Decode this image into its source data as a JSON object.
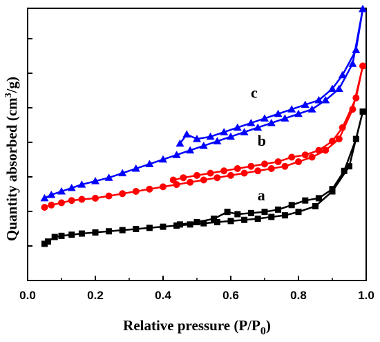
{
  "chart_data": {
    "type": "line",
    "xlabel": "Relative pressure (P/P",
    "xlabel_sub": "0",
    "xlabel_end": ")",
    "ylabel": "Quantity absorbed (cm",
    "ylabel_sup": "3",
    "ylabel_end": "/g)",
    "xlim": [
      0.0,
      1.0
    ],
    "x_ticks": [
      "0.0",
      "0.2",
      "0.4",
      "0.6",
      "0.8",
      "1.0"
    ],
    "y_ticks_labeled": false,
    "ylim": [
      0,
      100
    ],
    "grid": false,
    "legend": "none",
    "series": [
      {
        "name": "a",
        "color": "#000000",
        "marker": "square",
        "adsorption": [
          [
            0.05,
            7
          ],
          [
            0.06,
            8
          ],
          [
            0.08,
            10
          ],
          [
            0.1,
            10.5
          ],
          [
            0.13,
            11
          ],
          [
            0.16,
            11.5
          ],
          [
            0.2,
            12
          ],
          [
            0.24,
            12.5
          ],
          [
            0.28,
            13
          ],
          [
            0.32,
            13.5
          ],
          [
            0.36,
            14
          ],
          [
            0.4,
            14.5
          ],
          [
            0.44,
            15
          ],
          [
            0.48,
            15.5
          ],
          [
            0.52,
            16
          ],
          [
            0.56,
            16.5
          ],
          [
            0.6,
            17
          ],
          [
            0.64,
            17.5
          ],
          [
            0.68,
            18
          ],
          [
            0.72,
            18.8
          ],
          [
            0.76,
            19.5
          ],
          [
            0.8,
            21
          ],
          [
            0.85,
            23.5
          ],
          [
            0.9,
            30
          ],
          [
            0.95,
            41
          ],
          [
            0.99,
            65
          ]
        ],
        "desorption": [
          [
            0.99,
            65
          ],
          [
            0.97,
            53
          ],
          [
            0.935,
            39
          ],
          [
            0.9,
            31
          ],
          [
            0.86,
            27
          ],
          [
            0.82,
            26
          ],
          [
            0.78,
            24
          ],
          [
            0.74,
            22
          ],
          [
            0.7,
            21
          ],
          [
            0.66,
            20.5
          ],
          [
            0.62,
            20
          ],
          [
            0.59,
            21
          ],
          [
            0.55,
            18
          ],
          [
            0.5,
            16.5
          ],
          [
            0.45,
            15.5
          ]
        ]
      },
      {
        "name": "b",
        "color": "#ff0000",
        "marker": "circle",
        "adsorption": [
          [
            0.05,
            23
          ],
          [
            0.07,
            24
          ],
          [
            0.1,
            25
          ],
          [
            0.13,
            26
          ],
          [
            0.16,
            26.5
          ],
          [
            0.2,
            27
          ],
          [
            0.24,
            28
          ],
          [
            0.28,
            29
          ],
          [
            0.32,
            30
          ],
          [
            0.36,
            31
          ],
          [
            0.4,
            32
          ],
          [
            0.44,
            33
          ],
          [
            0.48,
            34
          ],
          [
            0.52,
            35
          ],
          [
            0.56,
            36
          ],
          [
            0.6,
            37
          ],
          [
            0.64,
            38
          ],
          [
            0.68,
            39
          ],
          [
            0.72,
            40
          ],
          [
            0.76,
            41
          ],
          [
            0.8,
            43
          ],
          [
            0.84,
            45
          ],
          [
            0.88,
            48
          ],
          [
            0.92,
            53
          ],
          [
            0.96,
            66
          ],
          [
            0.99,
            85
          ]
        ],
        "desorption": [
          [
            0.99,
            85
          ],
          [
            0.97,
            71
          ],
          [
            0.93,
            58
          ],
          [
            0.9,
            52
          ],
          [
            0.86,
            48
          ],
          [
            0.82,
            46
          ],
          [
            0.78,
            45
          ],
          [
            0.74,
            43
          ],
          [
            0.7,
            42
          ],
          [
            0.66,
            41
          ],
          [
            0.62,
            40
          ],
          [
            0.58,
            39
          ],
          [
            0.54,
            38
          ],
          [
            0.5,
            37
          ],
          [
            0.46,
            36
          ],
          [
            0.43,
            35
          ]
        ]
      },
      {
        "name": "c",
        "color": "#0000ff",
        "marker": "triangle",
        "adsorption": [
          [
            0.05,
            27
          ],
          [
            0.07,
            28.5
          ],
          [
            0.1,
            30
          ],
          [
            0.13,
            31.5
          ],
          [
            0.16,
            33
          ],
          [
            0.2,
            34.5
          ],
          [
            0.24,
            36
          ],
          [
            0.28,
            38
          ],
          [
            0.32,
            40
          ],
          [
            0.36,
            42
          ],
          [
            0.4,
            44
          ],
          [
            0.44,
            46
          ],
          [
            0.48,
            48
          ],
          [
            0.52,
            50
          ],
          [
            0.56,
            52
          ],
          [
            0.6,
            54
          ],
          [
            0.64,
            56
          ],
          [
            0.68,
            58
          ],
          [
            0.72,
            60
          ],
          [
            0.76,
            62
          ],
          [
            0.8,
            64
          ],
          [
            0.84,
            66
          ],
          [
            0.88,
            70
          ],
          [
            0.92,
            75
          ],
          [
            0.96,
            86
          ],
          [
            0.99,
            110
          ]
        ],
        "desorption": [
          [
            0.99,
            110
          ],
          [
            0.97,
            92
          ],
          [
            0.93,
            81
          ],
          [
            0.9,
            75
          ],
          [
            0.86,
            70
          ],
          [
            0.82,
            68
          ],
          [
            0.78,
            66
          ],
          [
            0.74,
            64
          ],
          [
            0.7,
            62
          ],
          [
            0.66,
            60
          ],
          [
            0.62,
            58
          ],
          [
            0.58,
            56
          ],
          [
            0.54,
            54
          ],
          [
            0.5,
            53
          ],
          [
            0.47,
            55
          ],
          [
            0.45,
            51
          ]
        ]
      }
    ],
    "annotations": [
      {
        "text": "a",
        "x": 0.72,
        "y": 26
      },
      {
        "text": "b",
        "x": 0.72,
        "y": 50
      },
      {
        "text": "c",
        "x": 0.7,
        "y": 71
      }
    ]
  }
}
